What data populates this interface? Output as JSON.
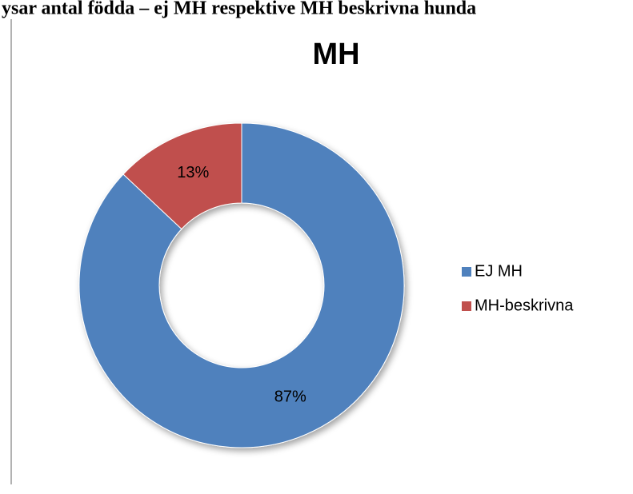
{
  "caption": "ysar antal födda – ej MH respektive MH beskrivna hunda",
  "chart_data": {
    "type": "pie",
    "title": "MH",
    "categories": [
      "EJ MH",
      "MH-beskrivna"
    ],
    "values": [
      87,
      13
    ],
    "value_labels": [
      "87%",
      "13%"
    ],
    "colors": [
      "#4f81bd",
      "#c0504d"
    ],
    "donut": true,
    "legend": "right"
  }
}
